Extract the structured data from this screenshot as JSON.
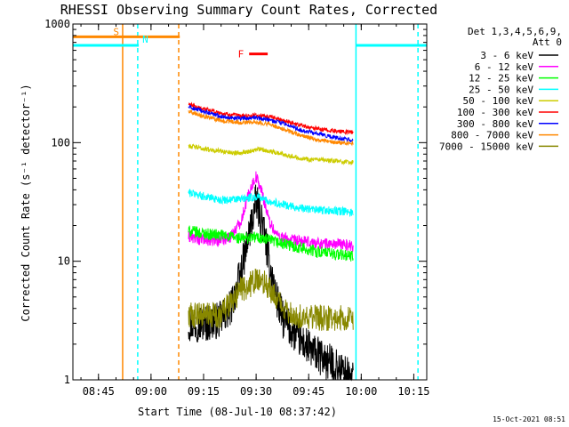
{
  "chart_data": {
    "type": "line",
    "title": "RHESSI Observing Summary Count Rates, Corrected",
    "xlabel": "Start Time (08-Jul-10 08:37:42)",
    "ylabel": "Corrected Count Rate (s⁻¹ detector⁻¹)",
    "y_scale": "log",
    "ylim": [
      1,
      1000
    ],
    "xlim_minutes_after_0837": [
      0,
      101
    ],
    "x_ticks": [
      {
        "label": "08:45",
        "t": 7.3
      },
      {
        "label": "09:00",
        "t": 22.3
      },
      {
        "label": "09:15",
        "t": 37.3
      },
      {
        "label": "09:30",
        "t": 52.3
      },
      {
        "label": "09:45",
        "t": 67.3
      },
      {
        "label": "10:00",
        "t": 82.3
      },
      {
        "label": "10:15",
        "t": 97.3
      }
    ],
    "y_ticks": [
      {
        "label": "1",
        "v": 1
      },
      {
        "label": "10",
        "v": 10
      },
      {
        "label": "100",
        "v": 100
      },
      {
        "label": "1000",
        "v": 1000
      }
    ],
    "legend_header": [
      "Det 1,3,4,5,6,9,",
      "Att 0"
    ],
    "legend_position": "top-right",
    "series": [
      {
        "name": "3 - 6 keV",
        "color": "#000000",
        "points": [
          [
            33,
            3
          ],
          [
            38,
            3
          ],
          [
            42,
            3.2
          ],
          [
            45,
            4
          ],
          [
            48,
            8
          ],
          [
            50.5,
            18
          ],
          [
            52.3,
            32
          ],
          [
            54,
            22
          ],
          [
            56,
            10
          ],
          [
            58,
            5
          ],
          [
            60,
            3.2
          ],
          [
            63,
            2.5
          ],
          [
            66,
            2
          ],
          [
            70,
            1.6
          ],
          [
            75,
            1.3
          ],
          [
            80,
            1
          ]
        ]
      },
      {
        "name": "6 - 12 keV",
        "color": "#ff00ff",
        "points": [
          [
            33,
            16
          ],
          [
            38,
            15
          ],
          [
            42,
            15
          ],
          [
            45,
            16
          ],
          [
            48,
            22
          ],
          [
            50.5,
            40
          ],
          [
            52.3,
            52
          ],
          [
            54,
            38
          ],
          [
            56,
            22
          ],
          [
            58,
            17
          ],
          [
            62,
            15
          ],
          [
            67,
            14.5
          ],
          [
            72,
            14
          ],
          [
            76,
            14
          ],
          [
            80,
            13.5
          ]
        ]
      },
      {
        "name": "12 - 25 keV",
        "color": "#00ff00",
        "points": [
          [
            33,
            18
          ],
          [
            38,
            17
          ],
          [
            43,
            16.5
          ],
          [
            48,
            15.5
          ],
          [
            52,
            16
          ],
          [
            56,
            15
          ],
          [
            60,
            14
          ],
          [
            65,
            13
          ],
          [
            70,
            12
          ],
          [
            75,
            11.5
          ],
          [
            80,
            11
          ]
        ]
      },
      {
        "name": "25 - 50 keV",
        "color": "#00ffff",
        "points": [
          [
            33,
            38
          ],
          [
            38,
            35
          ],
          [
            42,
            33
          ],
          [
            46,
            33
          ],
          [
            50,
            34
          ],
          [
            53,
            35
          ],
          [
            56,
            32
          ],
          [
            60,
            30
          ],
          [
            65,
            28
          ],
          [
            70,
            27
          ],
          [
            75,
            26.5
          ],
          [
            80,
            26
          ]
        ]
      },
      {
        "name": "50 - 100 keV",
        "color": "#cccc00",
        "points": [
          [
            33,
            94
          ],
          [
            38,
            88
          ],
          [
            42,
            85
          ],
          [
            46,
            82
          ],
          [
            50,
            84
          ],
          [
            53,
            88
          ],
          [
            56,
            85
          ],
          [
            60,
            80
          ],
          [
            65,
            74
          ],
          [
            70,
            71
          ],
          [
            75,
            70
          ],
          [
            80,
            68
          ]
        ]
      },
      {
        "name": "100 - 300 keV",
        "color": "#ff0000",
        "points": [
          [
            33,
            210
          ],
          [
            38,
            190
          ],
          [
            43,
            175
          ],
          [
            48,
            168
          ],
          [
            52,
            170
          ],
          [
            56,
            165
          ],
          [
            60,
            155
          ],
          [
            65,
            140
          ],
          [
            70,
            130
          ],
          [
            75,
            125
          ],
          [
            80,
            122
          ]
        ]
      },
      {
        "name": "300 - 800 keV",
        "color": "#0000ff",
        "points": [
          [
            33,
            200
          ],
          [
            38,
            180
          ],
          [
            43,
            165
          ],
          [
            48,
            160
          ],
          [
            52,
            162
          ],
          [
            56,
            155
          ],
          [
            60,
            145
          ],
          [
            65,
            128
          ],
          [
            70,
            118
          ],
          [
            75,
            110
          ],
          [
            80,
            105
          ]
        ]
      },
      {
        "name": "800 - 7000 keV",
        "color": "#ff8800",
        "points": [
          [
            33,
            185
          ],
          [
            38,
            165
          ],
          [
            43,
            152
          ],
          [
            48,
            148
          ],
          [
            52,
            150
          ],
          [
            56,
            143
          ],
          [
            60,
            130
          ],
          [
            65,
            115
          ],
          [
            70,
            105
          ],
          [
            75,
            100
          ],
          [
            80,
            98
          ]
        ]
      },
      {
        "name": "7000 - 15000 keV",
        "color": "#888800",
        "points": [
          [
            33,
            3.5
          ],
          [
            38,
            3.5
          ],
          [
            42,
            3.5
          ],
          [
            45,
            4.5
          ],
          [
            48,
            5.8
          ],
          [
            50,
            6.2
          ],
          [
            52,
            6.8
          ],
          [
            55,
            6.5
          ],
          [
            57,
            5.5
          ],
          [
            60,
            4
          ],
          [
            63,
            3.5
          ],
          [
            68,
            3.4
          ],
          [
            73,
            3.3
          ],
          [
            78,
            3.3
          ],
          [
            80,
            3.3
          ]
        ]
      }
    ],
    "flag_bars": [
      {
        "label": "S",
        "color": "#ff8800",
        "t_start": -0.5,
        "t_end": 30.5,
        "value": 780
      },
      {
        "label": "N",
        "color": "#00ffff",
        "t_start": -0.5,
        "t_end": 18.8,
        "value": 660
      },
      {
        "label": "N",
        "color": "#00ffff",
        "t_start": 80.8,
        "t_end": 101,
        "value": 660
      },
      {
        "label": "F",
        "color": "#ff0000",
        "t_start": 50.3,
        "t_end": 55.6,
        "value": 560
      }
    ],
    "vertical_markers": [
      {
        "t": 14.2,
        "color": "#ff8800",
        "style": "solid"
      },
      {
        "t": 30.2,
        "color": "#ff8800",
        "style": "dashed"
      },
      {
        "t": 18.5,
        "color": "#00ffff",
        "style": "dashed"
      },
      {
        "t": 80.8,
        "color": "#00ffff",
        "style": "solid"
      },
      {
        "t": 98.5,
        "color": "#00ffff",
        "style": "dashed"
      }
    ],
    "timestamp": "15-Oct-2021 08:51"
  }
}
